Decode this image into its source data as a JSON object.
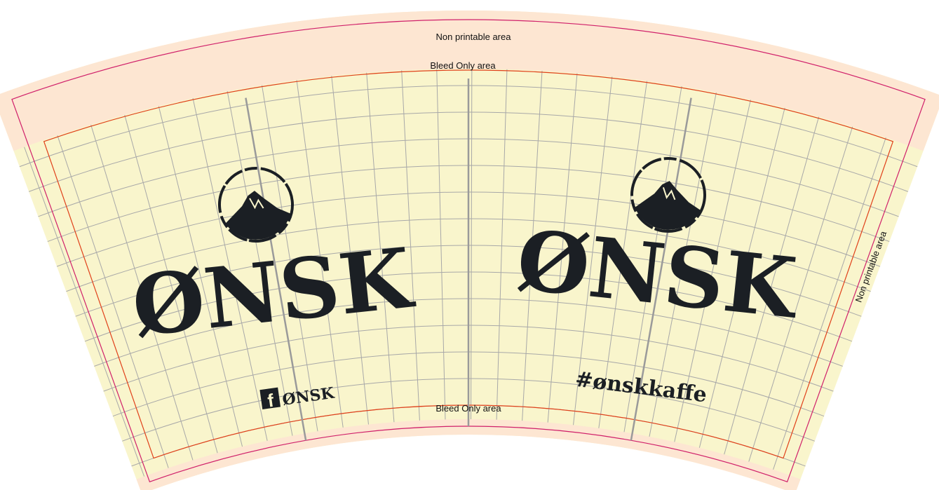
{
  "labels": {
    "top_non_printable": "Non printable area",
    "top_bleed": "Bleed Only area",
    "bottom_bleed": "Bleed Only area",
    "side_non_printable": "Non printable area"
  },
  "left_panel": {
    "logo_icon": "mountain-circle-icon",
    "brand": "ØNSK",
    "social_icon": "facebook-icon",
    "social_text": "ØNSK"
  },
  "right_panel": {
    "logo_icon": "mountain-circle-icon",
    "brand": "ØNSK",
    "hashtag": "#ønskkaffe"
  },
  "colors": {
    "bleed_fill": "#f9f5cc",
    "non_printable_fill": "#fde6d2",
    "cut_line": "#d0206a",
    "safe_line": "#e0401a",
    "grid": "#a8a8a8",
    "guide": "#9a9a9a",
    "ink": "#1b1f24"
  }
}
